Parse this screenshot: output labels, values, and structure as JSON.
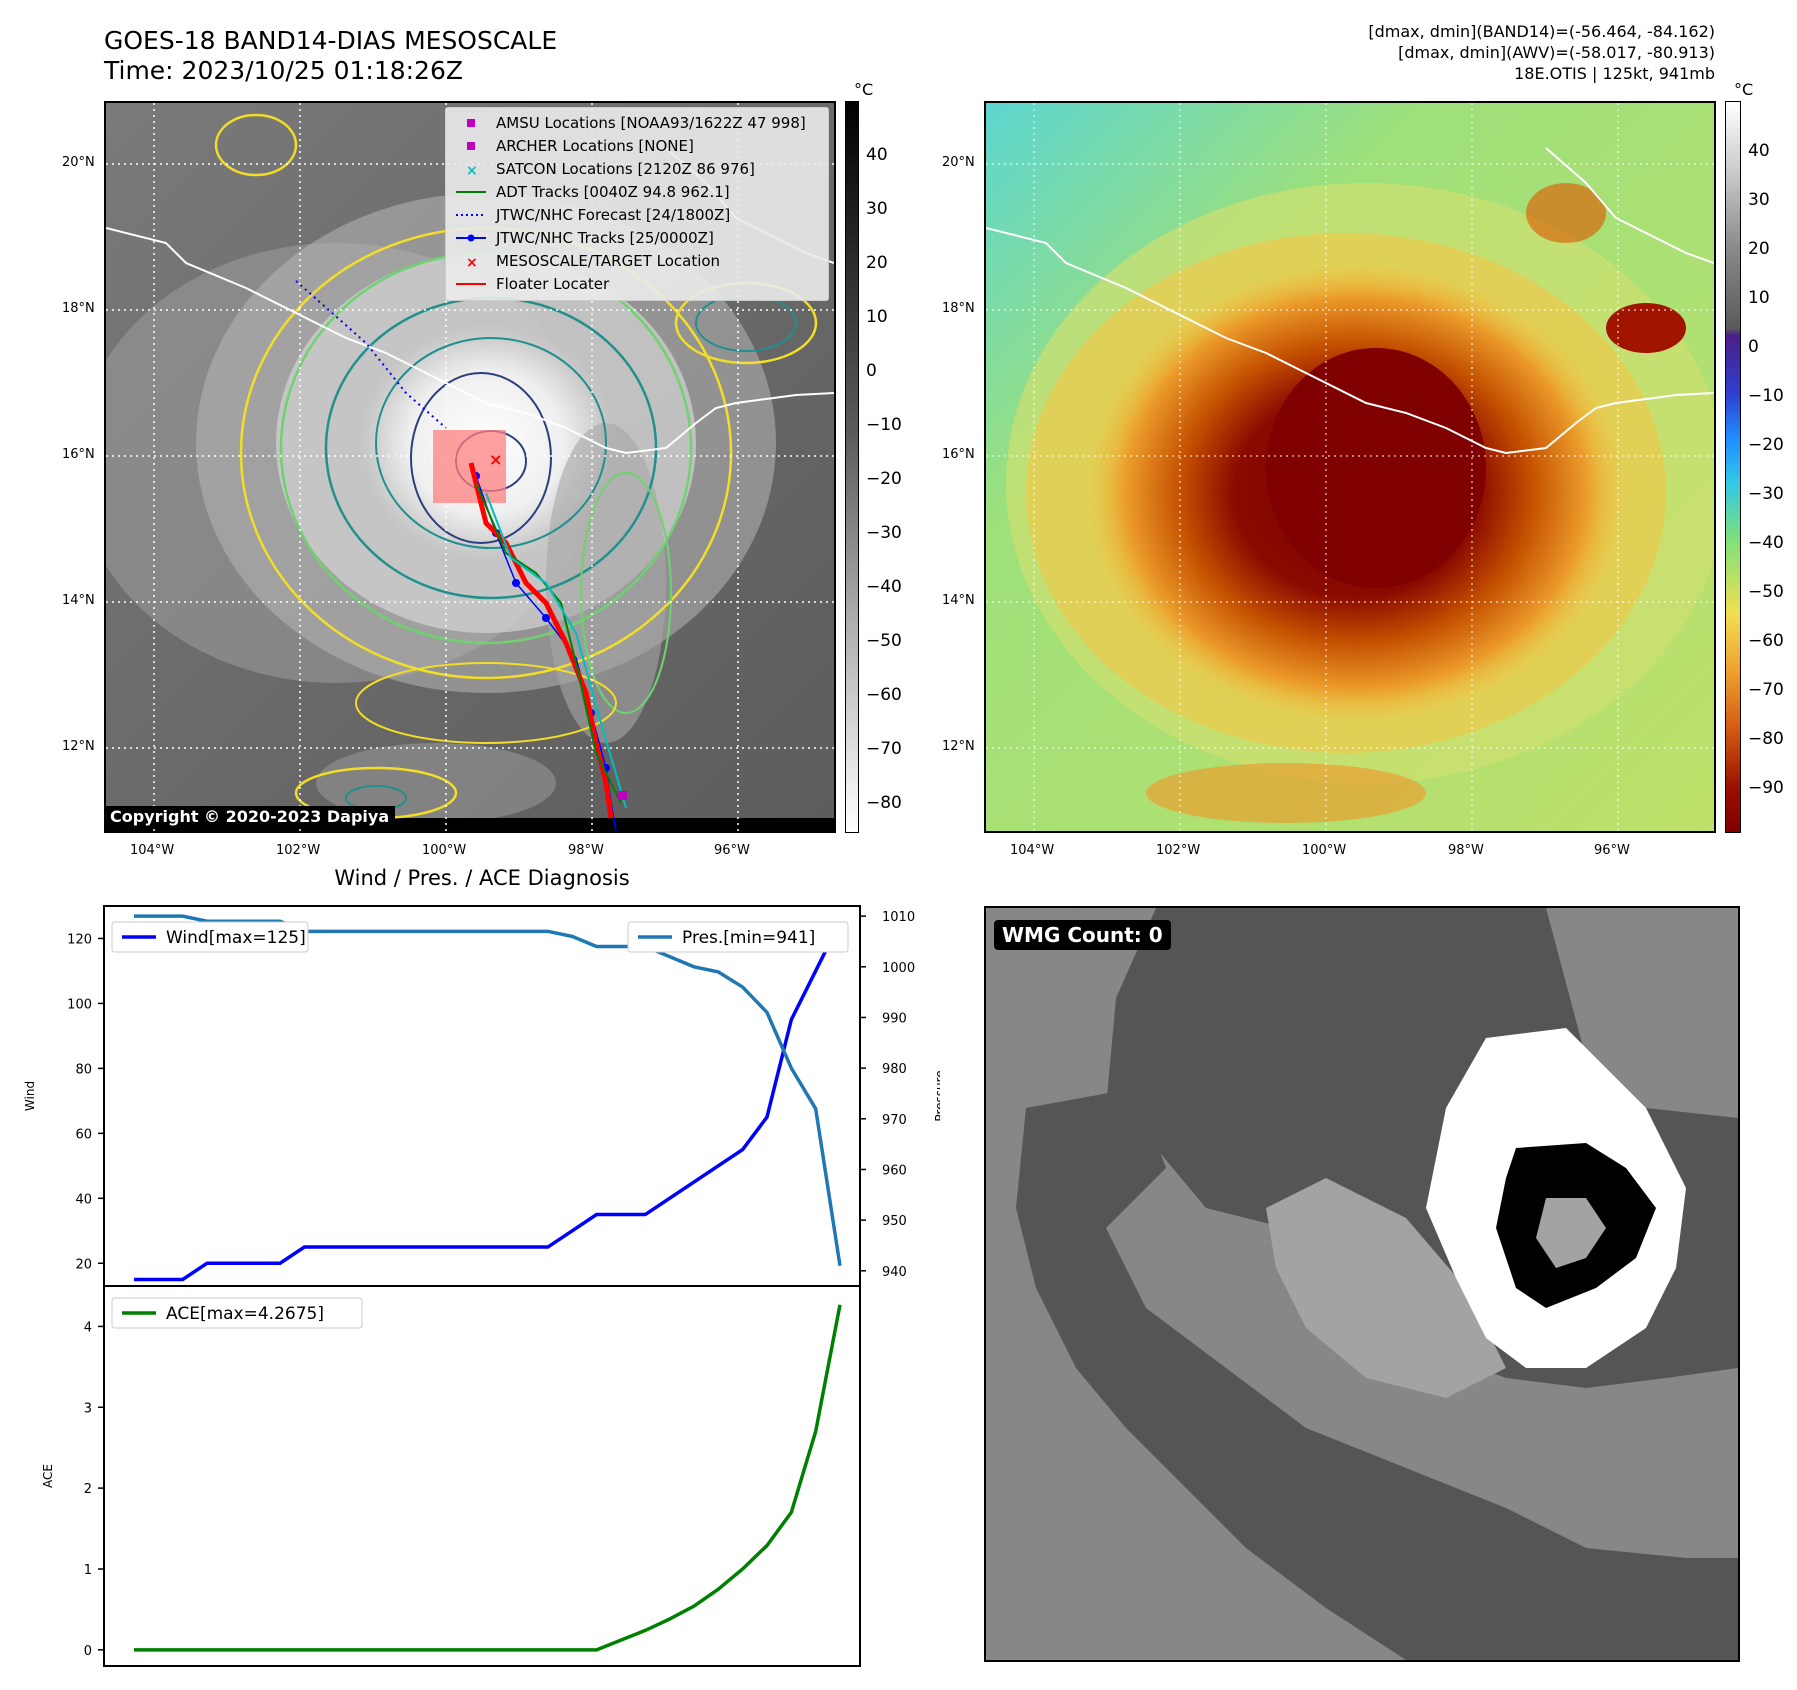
{
  "header": {
    "title_line1": "GOES-18 BAND14-DIAS MESOSCALE",
    "title_line2": "Time: 2023/10/25 01:18:26Z",
    "info_line1": "[dmax, dmin](BAND14)=(-56.464, -84.162)",
    "info_line2": "[dmax, dmin](AWV)=(-58.017, -80.913)",
    "info_line3": "18E.OTIS | 125kt, 941mb"
  },
  "map_panels": {
    "lat_labels": [
      "20°N",
      "18°N",
      "16°N",
      "14°N",
      "12°N"
    ],
    "lon_labels": [
      "104°W",
      "102°W",
      "100°W",
      "98°W",
      "96°W"
    ],
    "copyright": "Copyright © 2020-2023 Dapiya",
    "colors": {
      "gray_low": "#ffffff",
      "gray_high": "#000000",
      "contour_yellow": "#f2de27",
      "contour_green": "#6ed36e",
      "contour_teal": "#21908d",
      "contour_navy": "#2c3f7e"
    }
  },
  "legend": {
    "items": [
      {
        "label": "AMSU Locations [NOAA93/1622Z 47 998]",
        "icon": "square-marker",
        "color": "#bf00bf"
      },
      {
        "label": "ARCHER Locations [NONE]",
        "icon": "square-marker",
        "color": "#bf00bf"
      },
      {
        "label": "SATCON Locations [2120Z 86 976]",
        "icon": "x-marker",
        "color": "#00bfbf"
      },
      {
        "label": "ADT Tracks [0040Z 94.8 962.1]",
        "icon": "line",
        "color": "#008000"
      },
      {
        "label": "JTWC/NHC Forecast [24/1800Z]",
        "icon": "dotted-line",
        "color": "#0000ff"
      },
      {
        "label": "JTWC/NHC Tracks [25/0000Z]",
        "icon": "line-dot",
        "color": "#0000ff"
      },
      {
        "label": "MESOSCALE/TARGET Location",
        "icon": "x-marker",
        "color": "#ff0000"
      },
      {
        "label": "Floater Locater",
        "icon": "line",
        "color": "#ff0000"
      }
    ]
  },
  "colorbar_left": {
    "unit": "°C",
    "ticks": [
      "40",
      "30",
      "20",
      "10",
      "0",
      "−10",
      "−20",
      "−30",
      "−40",
      "−50",
      "−60",
      "−70",
      "−80"
    ]
  },
  "colorbar_right": {
    "unit": "°C",
    "ticks": [
      "40",
      "30",
      "20",
      "10",
      "0",
      "−10",
      "−20",
      "−30",
      "−40",
      "−50",
      "−60",
      "−70",
      "−80",
      "−90"
    ]
  },
  "diagnosis": {
    "title": "Wind / Pres. / ACE Diagnosis"
  },
  "wmg": {
    "label": "WMG Count: 0",
    "colors": [
      "#878787",
      "#555555",
      "#a3a3a3",
      "#ffffff",
      "#000000"
    ]
  },
  "chart_data": [
    {
      "type": "line",
      "xlabel": "",
      "ylabel": "Wind",
      "ylabel_right": "Pressure",
      "ylim": [
        13,
        130
      ],
      "ylim_right": [
        937,
        1012
      ],
      "yticks": [
        20,
        40,
        60,
        80,
        100,
        120
      ],
      "yticks_right": [
        940,
        950,
        960,
        970,
        980,
        990,
        1000,
        1010
      ],
      "x": [
        0,
        1,
        2,
        3,
        4,
        5,
        6,
        7,
        8,
        9,
        10,
        11,
        12,
        13,
        14,
        15,
        16,
        17,
        18,
        19,
        20,
        21,
        22,
        23,
        24,
        25,
        26,
        27,
        28,
        29
      ],
      "series": [
        {
          "name": "Wind[max=125]",
          "axis": "left",
          "color": "#0000ff",
          "values": [
            15,
            15,
            15,
            20,
            20,
            20,
            20,
            25,
            25,
            25,
            25,
            25,
            25,
            25,
            25,
            25,
            25,
            25,
            30,
            35,
            35,
            35,
            40,
            45,
            50,
            55,
            65,
            95,
            110,
            125
          ]
        },
        {
          "name": "Pres.[min=941]",
          "axis": "right",
          "color": "#1f77b4",
          "values": [
            1010,
            1010,
            1010,
            1009,
            1009,
            1009,
            1009,
            1007,
            1007,
            1007,
            1007,
            1007,
            1007,
            1007,
            1007,
            1007,
            1007,
            1007,
            1006,
            1004,
            1004,
            1004,
            1002,
            1000,
            999,
            996,
            991,
            980,
            972,
            941
          ]
        }
      ]
    },
    {
      "type": "line",
      "xlabel": "",
      "ylabel": "ACE",
      "ylim": [
        -0.2,
        4.5
      ],
      "yticks": [
        0,
        1,
        2,
        3,
        4
      ],
      "x": [
        0,
        1,
        2,
        3,
        4,
        5,
        6,
        7,
        8,
        9,
        10,
        11,
        12,
        13,
        14,
        15,
        16,
        17,
        18,
        19,
        20,
        21,
        22,
        23,
        24,
        25,
        26,
        27,
        28,
        29
      ],
      "series": [
        {
          "name": "ACE[max=4.2675]",
          "color": "#008000",
          "values": [
            0,
            0,
            0,
            0,
            0,
            0,
            0,
            0,
            0,
            0,
            0,
            0,
            0,
            0,
            0,
            0,
            0,
            0,
            0,
            0,
            0.12,
            0.24,
            0.38,
            0.54,
            0.75,
            1.0,
            1.29,
            1.7,
            2.7,
            4.2675
          ]
        }
      ]
    }
  ]
}
